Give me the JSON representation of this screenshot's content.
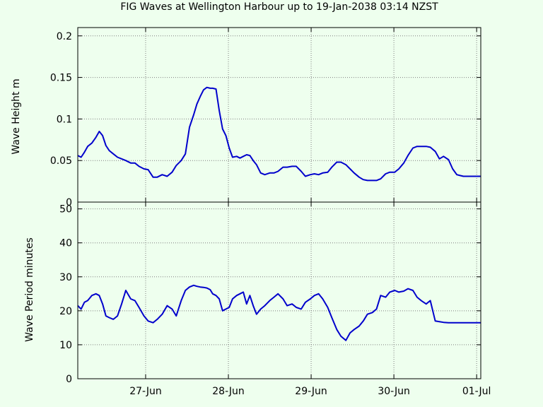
{
  "chart_data": {
    "title": "FIG Waves at Wellington Harbour up to 19-Jan-2038 03:14 NZST",
    "x_ticks": [
      "27-Jun",
      "28-Jun",
      "29-Jun",
      "30-Jun",
      "01-Jul"
    ],
    "x_range_days": [
      26.18,
      31.05
    ],
    "panels": [
      {
        "type": "line",
        "ylabel": "Wave Height m",
        "ylim": [
          0,
          0.21
        ],
        "yticks": [
          "0",
          "0.05",
          "0.1",
          "0.15",
          "0.2"
        ],
        "ytick_values": [
          0,
          0.05,
          0.1,
          0.15,
          0.2
        ],
        "series": {
          "x": [
            26.18,
            26.22,
            26.26,
            26.3,
            26.35,
            26.4,
            26.44,
            26.48,
            26.52,
            26.56,
            26.61,
            26.66,
            26.71,
            26.76,
            26.82,
            26.87,
            26.92,
            26.98,
            27.03,
            27.09,
            27.14,
            27.2,
            27.26,
            27.32,
            27.37,
            27.43,
            27.48,
            27.53,
            27.58,
            27.62,
            27.66,
            27.7,
            27.74,
            27.78,
            27.81,
            27.85,
            27.89,
            27.93,
            27.97,
            28.01,
            28.05,
            28.1,
            28.14,
            28.18,
            28.22,
            28.26,
            28.3,
            28.34,
            28.39,
            28.44,
            28.5,
            28.55,
            28.6,
            28.66,
            28.71,
            28.77,
            28.82,
            28.88,
            28.93,
            28.99,
            29.04,
            29.09,
            29.14,
            29.2,
            29.25,
            29.31,
            29.36,
            29.42,
            29.47,
            29.52,
            29.58,
            29.63,
            29.68,
            29.74,
            29.79,
            29.84,
            29.9,
            29.95,
            30.01,
            30.06,
            30.12,
            30.17,
            30.23,
            30.28,
            30.33,
            30.39,
            30.44,
            30.5,
            30.55,
            30.6,
            30.66,
            30.71,
            30.76,
            30.8,
            30.84,
            30.88,
            30.92,
            30.95,
            30.98,
            31.01,
            31.05
          ],
          "y": [
            0.056,
            0.054,
            0.06,
            0.067,
            0.071,
            0.078,
            0.085,
            0.08,
            0.068,
            0.062,
            0.058,
            0.054,
            0.052,
            0.05,
            0.047,
            0.047,
            0.043,
            0.04,
            0.039,
            0.03,
            0.03,
            0.033,
            0.031,
            0.036,
            0.044,
            0.05,
            0.058,
            0.09,
            0.105,
            0.118,
            0.127,
            0.135,
            0.138,
            0.137,
            0.137,
            0.136,
            0.11,
            0.088,
            0.08,
            0.065,
            0.054,
            0.055,
            0.053,
            0.055,
            0.057,
            0.056,
            0.05,
            0.045,
            0.035,
            0.033,
            0.035,
            0.035,
            0.037,
            0.042,
            0.042,
            0.043,
            0.043,
            0.037,
            0.031,
            0.033,
            0.034,
            0.033,
            0.035,
            0.036,
            0.042,
            0.048,
            0.048,
            0.045,
            0.04,
            0.035,
            0.03,
            0.027,
            0.026,
            0.026,
            0.026,
            0.028,
            0.034,
            0.036,
            0.036,
            0.04,
            0.047,
            0.056,
            0.065,
            0.067,
            0.067,
            0.067,
            0.066,
            0.061,
            0.052,
            0.055,
            0.051,
            0.04,
            0.033,
            0.032,
            0.031,
            0.031,
            0.031,
            0.031,
            0.031,
            0.031,
            0.031
          ]
        }
      },
      {
        "type": "line",
        "ylabel": "Wave Period minutes",
        "ylim": [
          0,
          52
        ],
        "yticks": [
          "0",
          "10",
          "20",
          "30",
          "40",
          "50"
        ],
        "ytick_values": [
          0,
          10,
          20,
          30,
          40,
          50
        ],
        "series": {
          "x": [
            26.18,
            26.22,
            26.26,
            26.3,
            26.35,
            26.4,
            26.44,
            26.48,
            26.52,
            26.56,
            26.61,
            26.66,
            26.71,
            26.76,
            26.82,
            26.87,
            26.92,
            26.98,
            27.03,
            27.09,
            27.14,
            27.2,
            27.26,
            27.32,
            27.37,
            27.43,
            27.48,
            27.53,
            27.58,
            27.62,
            27.66,
            27.7,
            27.74,
            27.78,
            27.81,
            27.85,
            27.89,
            27.93,
            27.97,
            28.01,
            28.05,
            28.1,
            28.14,
            28.18,
            28.22,
            28.26,
            28.3,
            28.34,
            28.39,
            28.44,
            28.5,
            28.55,
            28.6,
            28.66,
            28.71,
            28.77,
            28.82,
            28.88,
            28.93,
            28.99,
            29.04,
            29.09,
            29.14,
            29.2,
            29.25,
            29.31,
            29.36,
            29.42,
            29.47,
            29.52,
            29.58,
            29.63,
            29.68,
            29.74,
            29.79,
            29.84,
            29.9,
            29.95,
            30.01,
            30.06,
            30.12,
            30.17,
            30.23,
            30.28,
            30.33,
            30.39,
            30.44,
            30.5,
            30.55,
            30.6,
            30.66,
            30.71,
            30.76,
            30.8,
            30.84,
            30.88,
            30.92,
            30.95,
            30.98,
            31.01,
            31.05
          ],
          "y": [
            21.5,
            20.5,
            22.5,
            23.0,
            24.5,
            25.0,
            24.5,
            22.0,
            18.5,
            18.0,
            17.5,
            18.5,
            22.0,
            26.0,
            23.5,
            23.0,
            21.0,
            18.5,
            17.0,
            16.5,
            17.5,
            19.0,
            21.5,
            20.5,
            18.5,
            23.0,
            26.0,
            27.0,
            27.5,
            27.2,
            27.0,
            26.9,
            26.7,
            26.2,
            25.0,
            24.5,
            23.5,
            20.0,
            20.5,
            21.0,
            23.5,
            24.5,
            25.0,
            25.5,
            22.0,
            24.5,
            21.5,
            19.0,
            20.5,
            21.5,
            23.0,
            24.0,
            25.0,
            23.5,
            21.5,
            22.0,
            21.0,
            20.5,
            22.5,
            23.5,
            24.5,
            25.0,
            23.5,
            21.0,
            18.0,
            14.5,
            12.5,
            11.3,
            13.5,
            14.5,
            15.5,
            17.0,
            19.0,
            19.5,
            20.5,
            24.5,
            24.0,
            25.5,
            26.0,
            25.5,
            25.8,
            26.5,
            26.0,
            24.0,
            23.0,
            22.0,
            23.0,
            17.0,
            16.8,
            16.6,
            16.5,
            16.5,
            16.5,
            16.5,
            16.5,
            16.5,
            16.5,
            16.5,
            16.5,
            16.5,
            16.5
          ]
        }
      }
    ]
  }
}
